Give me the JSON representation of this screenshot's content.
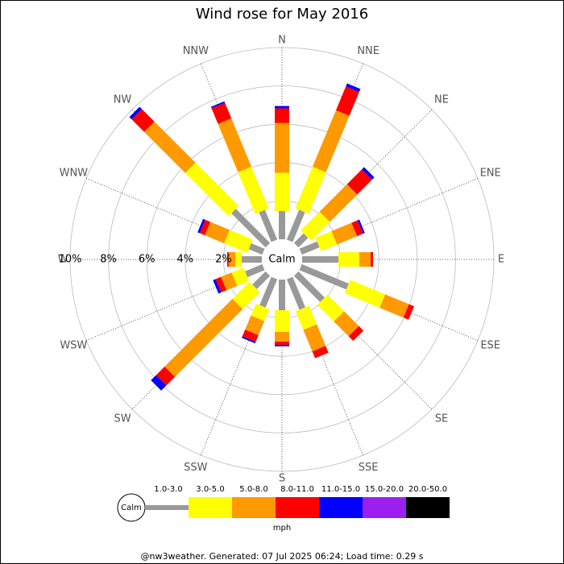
{
  "chart_data": {
    "type": "windrose",
    "title": "Wind rose for May 2016",
    "calm_label": "Calm",
    "unit_label": "mph",
    "footer": "@nw3weather. Generated: 07 Jul 2025 06:24; Load time: 0.29 s",
    "categories": [
      "N",
      "NNE",
      "NE",
      "ENE",
      "E",
      "ESE",
      "SE",
      "SSE",
      "S",
      "SSW",
      "SW",
      "WSW",
      "W",
      "WNW",
      "NW",
      "NNW"
    ],
    "ylim": [
      0,
      10
    ],
    "yticks": [
      {
        "value": 2,
        "label": "2%"
      },
      {
        "value": 4,
        "label": "4%"
      },
      {
        "value": 6,
        "label": "6%"
      },
      {
        "value": 8,
        "label": "8%"
      },
      {
        "value": 10,
        "label": "10%"
      }
    ],
    "grid": true,
    "series": [
      {
        "name": "1.0-3.0",
        "color": "#999999",
        "values": [
          1.47,
          1.68,
          0.71,
          1.0,
          1.89,
          2.65,
          1.93,
          1.72,
          1.6,
          1.6,
          0.97,
          0.97,
          1.05,
          0.76,
          2.52,
          1.68
        ]
      },
      {
        "name": "3.0-5.0",
        "color": "#ffff00",
        "values": [
          2.0,
          2.35,
          1.39,
          0.9,
          1.09,
          1.97,
          1.22,
          1.05,
          1.13,
          0.67,
          1.26,
          0.67,
          0.34,
          1.3,
          3.19,
          2.35
        ]
      },
      {
        "name": "5.0-8.0",
        "color": "#ff9900",
        "values": [
          2.6,
          3.19,
          2.02,
          1.13,
          0.59,
          1.34,
          1.09,
          1.22,
          0.5,
          0.8,
          5.0,
          0.6,
          0.34,
          1.09,
          3.03,
          2.73
        ]
      },
      {
        "name": "8.0-11.0",
        "color": "#ff0000",
        "values": [
          0.76,
          1.34,
          1.09,
          0.34,
          0.13,
          0.29,
          0.34,
          0.38,
          0.17,
          0.38,
          0.63,
          0.3,
          0.08,
          0.29,
          0.92,
          0.88
        ]
      },
      {
        "name": "11.0-15.0",
        "color": "#0000ff",
        "values": [
          0.12,
          0.17,
          0.17,
          0.1,
          0,
          0,
          0,
          0,
          0.08,
          0.08,
          0.38,
          0.15,
          0,
          0.12,
          0.17,
          0.08
        ]
      },
      {
        "name": "15.0-20.0",
        "color": "#9b20f0",
        "values": [
          0,
          0,
          0,
          0,
          0,
          0,
          0,
          0,
          0,
          0,
          0,
          0,
          0,
          0,
          0,
          0
        ]
      },
      {
        "name": "20.0-50.0",
        "color": "#000000",
        "values": [
          0,
          0,
          0,
          0,
          0,
          0,
          0,
          0,
          0,
          0,
          0,
          0,
          0,
          0,
          0,
          0
        ]
      }
    ]
  }
}
